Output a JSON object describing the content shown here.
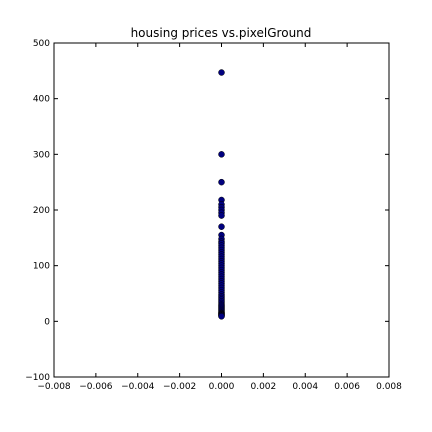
{
  "chart_data": {
    "type": "scatter",
    "title": "housing prices vs.pixelGround",
    "xlabel": "",
    "ylabel": "",
    "xlim": [
      -0.008,
      0.008
    ],
    "ylim": [
      -100,
      500
    ],
    "x_ticks": [
      -0.008,
      -0.006,
      -0.004,
      -0.002,
      0.0,
      0.002,
      0.004,
      0.006,
      0.008
    ],
    "x_tick_labels": [
      "−0.008",
      "−0.006",
      "−0.004",
      "−0.002",
      "0.000",
      "0.002",
      "0.004",
      "0.006",
      "0.008"
    ],
    "y_ticks": [
      -100,
      0,
      100,
      200,
      300,
      400,
      500
    ],
    "y_tick_labels": [
      "−100",
      "0",
      "100",
      "200",
      "300",
      "400",
      "500"
    ],
    "grid": false,
    "marker_color": "#00007f",
    "series": [
      {
        "x": [
          0,
          0,
          0,
          0,
          0,
          0,
          0,
          0,
          0,
          0,
          0,
          0,
          0,
          0,
          0,
          0,
          0,
          0,
          0,
          0,
          0,
          0,
          0,
          0,
          0,
          0,
          0,
          0,
          0,
          0,
          0,
          0,
          0,
          0,
          0,
          0,
          0,
          0,
          0,
          0,
          0,
          0,
          0,
          0,
          0,
          0,
          0,
          0,
          0,
          0,
          0,
          0,
          0,
          0,
          0,
          0,
          0
        ],
        "y": [
          447,
          300,
          250,
          218,
          210,
          205,
          200,
          195,
          190,
          170,
          155,
          148,
          143,
          140,
          136,
          132,
          128,
          124,
          120,
          116,
          112,
          108,
          104,
          100,
          96,
          92,
          88,
          84,
          80,
          76,
          72,
          68,
          64,
          60,
          56,
          52,
          48,
          45,
          42,
          39,
          36,
          33,
          30,
          28,
          26,
          24,
          22,
          20,
          18,
          16,
          15,
          14,
          13,
          12,
          11,
          10,
          9
        ]
      }
    ]
  }
}
